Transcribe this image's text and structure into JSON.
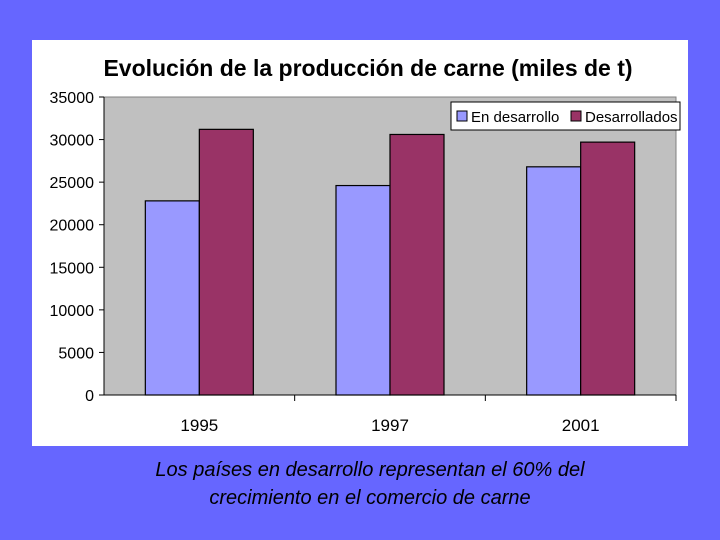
{
  "chart_data": {
    "type": "bar",
    "title": "Evolución de la producción de carne (miles de t)",
    "categories": [
      "1995",
      "1997",
      "2001"
    ],
    "series": [
      {
        "name": "En desarrollo",
        "values": [
          22800,
          24600,
          26800
        ],
        "color": "#9999ff"
      },
      {
        "name": "Desarrollados",
        "values": [
          31200,
          30600,
          29700
        ],
        "color": "#993366"
      }
    ],
    "ylim": [
      0,
      35000
    ],
    "yticks": [
      "0",
      "5000",
      "10000",
      "15000",
      "20000",
      "25000",
      "30000",
      "35000"
    ],
    "xlabel": "",
    "ylabel": "",
    "plot_background": "#c0c0c0",
    "legend_position": "top-right"
  },
  "caption": {
    "line1": "Los países en desarrollo representan el 60% del",
    "line2": "crecimiento en el comercio de carne"
  },
  "colors": {
    "slide_background": "#6666ff",
    "panel_background": "#ffffff"
  }
}
